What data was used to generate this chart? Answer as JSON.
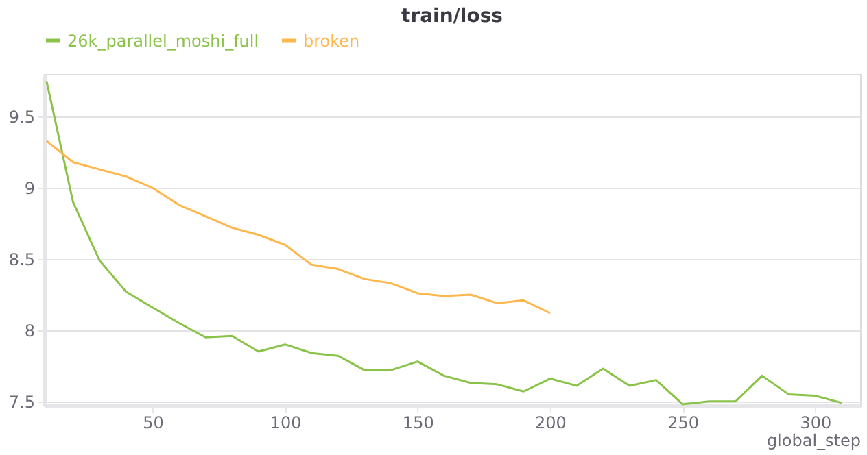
{
  "chart_data": {
    "type": "line",
    "title": "train/loss",
    "xlabel": "global_step",
    "x": [
      10,
      20,
      30,
      40,
      50,
      60,
      70,
      80,
      90,
      100,
      110,
      120,
      130,
      140,
      150,
      160,
      170,
      180,
      190,
      200,
      210,
      220,
      230,
      240,
      250,
      260,
      270,
      280,
      290,
      300,
      310
    ],
    "series": [
      {
        "name": "26k_parallel_moshi_full",
        "color": "#8bc34a",
        "values": [
          9.75,
          8.9,
          8.49,
          8.27,
          8.16,
          8.05,
          7.95,
          7.96,
          7.85,
          7.9,
          7.84,
          7.82,
          7.72,
          7.72,
          7.78,
          7.68,
          7.63,
          7.62,
          7.57,
          7.66,
          7.61,
          7.73,
          7.61,
          7.65,
          7.48,
          7.5,
          7.5,
          7.68,
          7.55,
          7.54,
          7.49
        ]
      },
      {
        "name": "broken",
        "color": "#ffb74d",
        "values": [
          9.33,
          9.18,
          9.13,
          9.08,
          9.0,
          8.88,
          8.8,
          8.72,
          8.67,
          8.6,
          8.46,
          8.43,
          8.36,
          8.33,
          8.26,
          8.24,
          8.25,
          8.19,
          8.21,
          8.12,
          null,
          null,
          null,
          null,
          null,
          null,
          null,
          null,
          null,
          null,
          null
        ]
      }
    ],
    "xlim": [
      9,
      317
    ],
    "ylim": [
      7.47,
      9.8
    ],
    "xticks": [
      50,
      100,
      150,
      200,
      250,
      300
    ],
    "yticks": [
      7.5,
      8,
      8.5,
      9,
      9.5
    ],
    "grid": "y",
    "legend": "top",
    "marker": "none",
    "line_style": "solid"
  }
}
